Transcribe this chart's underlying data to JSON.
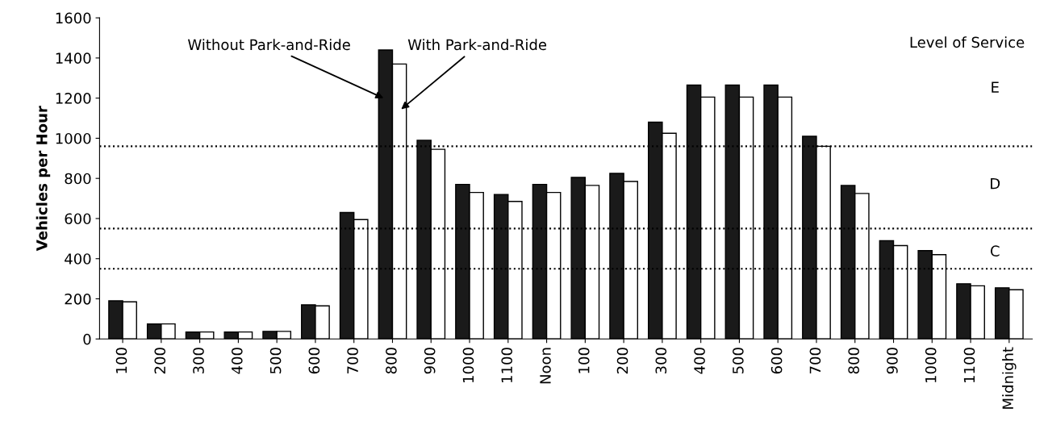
{
  "chart_data": {
    "type": "bar",
    "ylabel": "Vehicles per Hour",
    "categories": [
      "100",
      "200",
      "300",
      "400",
      "500",
      "600",
      "700",
      "800",
      "900",
      "1000",
      "1100",
      "Noon",
      "100",
      "200",
      "300",
      "400",
      "500",
      "600",
      "700",
      "800",
      "900",
      "1000",
      "1100",
      "Midnight"
    ],
    "series": [
      {
        "name": "Without Park-and-Ride",
        "color": "#1a1a1a",
        "values": [
          190,
          75,
          35,
          35,
          38,
          170,
          630,
          1440,
          990,
          770,
          720,
          770,
          805,
          825,
          1080,
          1265,
          1265,
          1265,
          1010,
          765,
          490,
          440,
          275,
          255
        ]
      },
      {
        "name": "With Park-and-Ride",
        "color": "#ffffff",
        "values": [
          185,
          75,
          35,
          35,
          38,
          165,
          595,
          1370,
          945,
          730,
          685,
          730,
          765,
          785,
          1025,
          1205,
          1205,
          1205,
          960,
          725,
          465,
          420,
          265,
          245
        ]
      }
    ],
    "ylim": [
      0,
      1600
    ],
    "yticks": [
      0,
      200,
      400,
      600,
      800,
      1000,
      1200,
      1400,
      1600
    ],
    "grid": false,
    "legend": false,
    "ref_lines": [
      {
        "axis": "y",
        "value": 960,
        "line_style": "dotted",
        "color": "#000000"
      },
      {
        "axis": "y",
        "value": 550,
        "line_style": "dotted",
        "color": "#000000"
      },
      {
        "axis": "y",
        "value": 350,
        "line_style": "dotted",
        "color": "#000000"
      }
    ],
    "annotations": [
      "Level of Service",
      "E",
      "D",
      "C"
    ]
  }
}
